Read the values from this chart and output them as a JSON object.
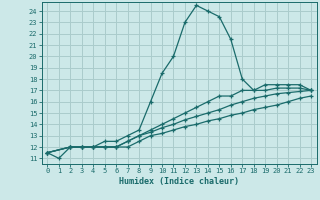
{
  "xlabel": "Humidex (Indice chaleur)",
  "bg_color": "#cce8e8",
  "grid_color": "#aacccc",
  "line_color": "#1a6b6b",
  "xlim": [
    -0.5,
    23.5
  ],
  "ylim": [
    10.5,
    24.8
  ],
  "xticks": [
    0,
    1,
    2,
    3,
    4,
    5,
    6,
    7,
    8,
    9,
    10,
    11,
    12,
    13,
    14,
    15,
    16,
    17,
    18,
    19,
    20,
    21,
    22,
    23
  ],
  "yticks": [
    11,
    12,
    13,
    14,
    15,
    16,
    17,
    18,
    19,
    20,
    21,
    22,
    23,
    24
  ],
  "curve1_x": [
    0,
    1,
    2,
    3,
    4,
    5,
    6,
    7,
    8,
    9,
    10,
    11,
    12,
    13,
    14,
    15,
    16,
    17,
    18,
    19,
    20,
    21,
    22,
    23
  ],
  "curve1_y": [
    11.5,
    11.0,
    12.0,
    12.0,
    12.0,
    12.5,
    12.5,
    13.0,
    13.5,
    16.0,
    18.5,
    20.0,
    23.0,
    24.5,
    24.0,
    23.5,
    21.5,
    18.0,
    17.0,
    17.5,
    17.5,
    17.5,
    17.5,
    17.0
  ],
  "curve2_x": [
    0,
    2,
    3,
    4,
    5,
    6,
    7,
    8,
    9,
    10,
    11,
    12,
    13,
    14,
    15,
    16,
    17,
    18,
    19,
    20,
    21,
    22,
    23
  ],
  "curve2_y": [
    11.5,
    12.0,
    12.0,
    12.0,
    12.0,
    12.0,
    12.5,
    13.0,
    13.5,
    14.0,
    14.5,
    15.0,
    15.5,
    16.0,
    16.5,
    16.5,
    17.0,
    17.0,
    17.0,
    17.2,
    17.2,
    17.2,
    17.0
  ],
  "curve3_x": [
    0,
    2,
    3,
    4,
    5,
    6,
    7,
    8,
    9,
    10,
    11,
    12,
    13,
    14,
    15,
    16,
    17,
    18,
    19,
    20,
    21,
    22,
    23
  ],
  "curve3_y": [
    11.5,
    12.0,
    12.0,
    12.0,
    12.0,
    12.0,
    12.5,
    13.0,
    13.3,
    13.7,
    14.0,
    14.4,
    14.7,
    15.0,
    15.3,
    15.7,
    16.0,
    16.3,
    16.5,
    16.7,
    16.8,
    16.9,
    17.0
  ],
  "curve4_x": [
    0,
    2,
    3,
    4,
    5,
    6,
    7,
    8,
    9,
    10,
    11,
    12,
    13,
    14,
    15,
    16,
    17,
    18,
    19,
    20,
    21,
    22,
    23
  ],
  "curve4_y": [
    11.5,
    12.0,
    12.0,
    12.0,
    12.0,
    12.0,
    12.0,
    12.5,
    13.0,
    13.2,
    13.5,
    13.8,
    14.0,
    14.3,
    14.5,
    14.8,
    15.0,
    15.3,
    15.5,
    15.7,
    16.0,
    16.3,
    16.5
  ]
}
